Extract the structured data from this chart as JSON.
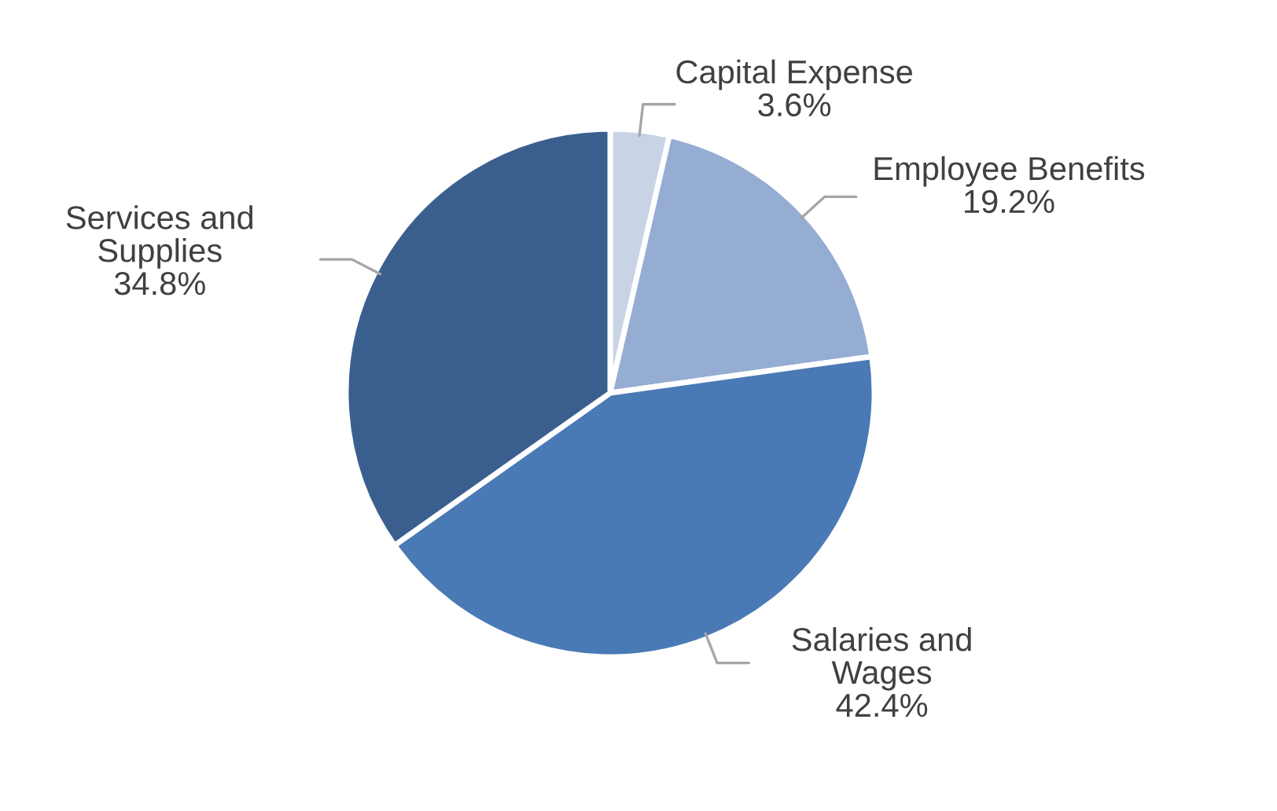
{
  "chart_data": {
    "type": "pie",
    "categories": [
      "Capital Expense",
      "Employee Benefits",
      "Salaries and\nWages",
      "Services and\nSupplies"
    ],
    "values": [
      3.6,
      19.2,
      42.4,
      34.8
    ],
    "value_labels": [
      "3.6%",
      "19.2%",
      "42.4%",
      "34.8%"
    ],
    "colors": [
      "#c9d3e6",
      "#95acd3",
      "#4a7ab5",
      "#3a5f8f"
    ],
    "legend": false
  }
}
